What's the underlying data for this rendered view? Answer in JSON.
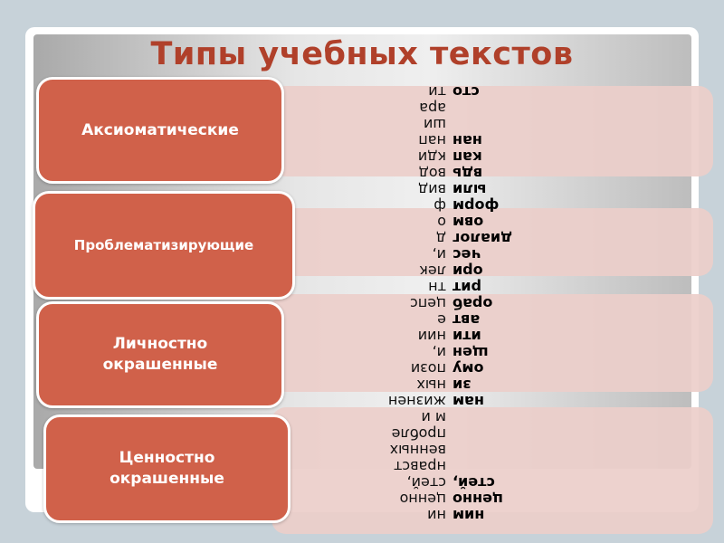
{
  "slide": {
    "title": "Типы учебных текстов",
    "colors": {
      "accent": "#d0614a",
      "title": "#b0402a",
      "bar": "#eccec a",
      "background": "#c7d2d9"
    },
    "items": [
      {
        "label": "Аксиоматические"
      },
      {
        "label": "Проблематизирующие"
      },
      {
        "label": "Личностно окрашенные"
      },
      {
        "label": "Ценностно окрашенные"
      }
    ]
  },
  "overlay_text": {
    "light_lines": [
      "ти",
      "ара",
      "ши",
      "нап",
      "кди",
      "вод",
      "вид",
      "ф",
      "о",
      "д",
      "и,",
      "лек",
      "тн",
      "цепс",
      "е",
      "нии",
      "и,",
      "пози",
      "ных",
      "жизнен",
      "м и",
      "пробле",
      "венных",
      "нравст",
      "стей,",
      "ценно",
      "ни"
    ],
    "bold_lines": [
      "сто",
      "",
      "",
      "нан",
      "кап",
      "вдь",
      "ыли",
      "форм",
      "овм",
      "диалог",
      "чес",
      "ори",
      "рит",
      "ораб",
      "авт",
      "ити",
      "щен",
      "ому",
      "зи",
      "нам",
      "",
      "",
      "",
      "",
      "стей,",
      "ценно",
      "ним"
    ]
  }
}
